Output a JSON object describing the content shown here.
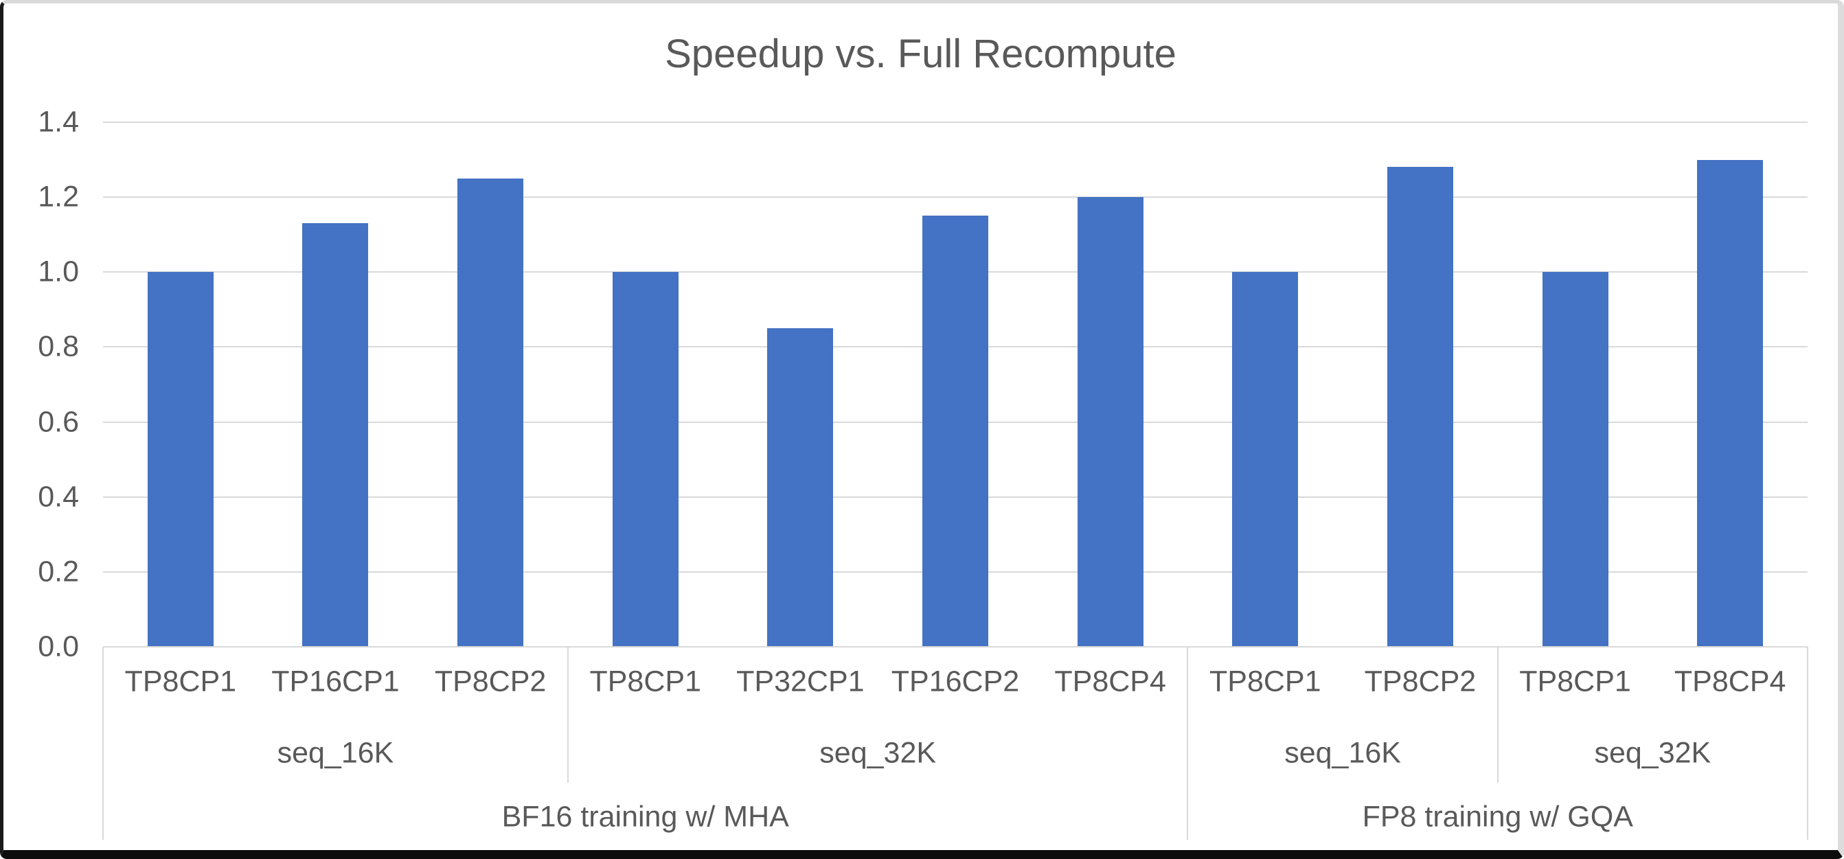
{
  "chart_data": {
    "type": "bar",
    "title": "Speedup vs. Full Recompute",
    "bar_color": "#4472C4",
    "text_color": "#595959",
    "gridline_color": "#D9D9D9",
    "background_color": "#FFFFFF",
    "grid": true,
    "legend": "none",
    "ylim": [
      0.0,
      1.4
    ],
    "ytick_step": 0.2,
    "ytick_labels": [
      "1.4",
      "1.2",
      "1.0",
      "0.8",
      "0.6",
      "0.4",
      "0.2",
      "0.0"
    ],
    "categories": [
      "TP8CP1",
      "TP16CP1",
      "TP8CP2",
      "TP8CP1",
      "TP32CP1",
      "TP16CP2",
      "TP8CP4",
      "TP8CP1",
      "TP8CP2",
      "TP8CP1",
      "TP8CP4"
    ],
    "values": [
      1.0,
      1.13,
      1.25,
      1.0,
      0.85,
      1.15,
      1.2,
      1.0,
      1.28,
      1.0,
      1.3
    ],
    "x_level_seq_groups": [
      {
        "label": "seq_16K",
        "span": 3
      },
      {
        "label": "seq_32K",
        "span": 4
      },
      {
        "label": "seq_16K",
        "span": 2
      },
      {
        "label": "seq_32K",
        "span": 2
      }
    ],
    "x_level_training_groups": [
      {
        "label": "BF16 training w/ MHA",
        "span": 7
      },
      {
        "label": "FP8 training w/ GQA",
        "span": 4
      }
    ]
  }
}
